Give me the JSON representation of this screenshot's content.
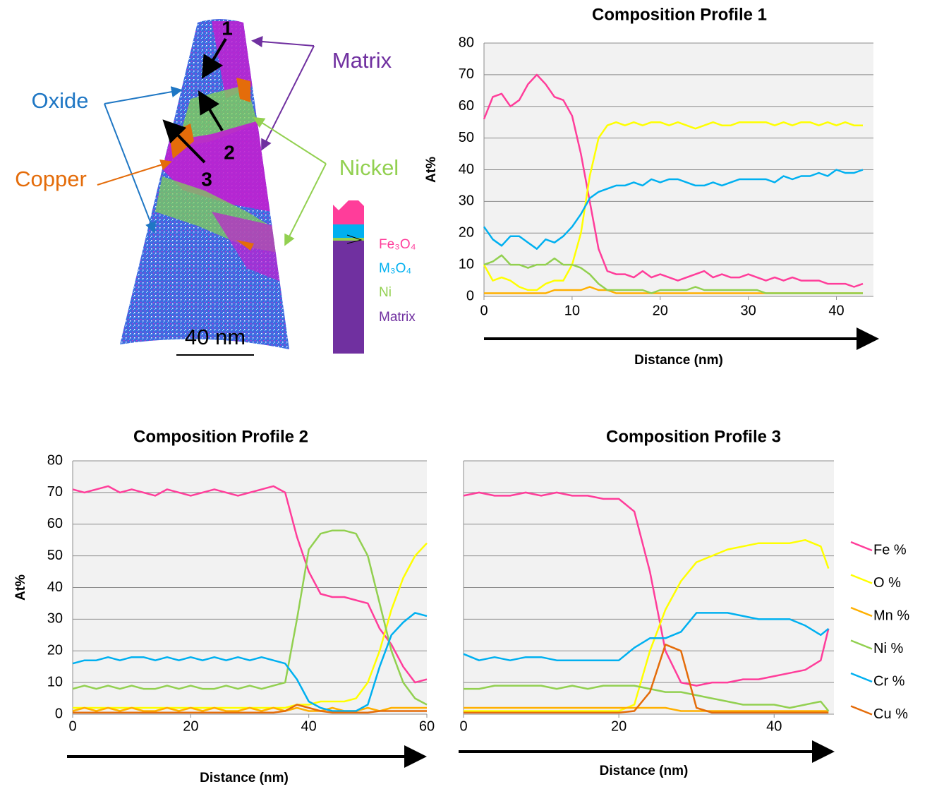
{
  "reconstruction": {
    "profile_markers": [
      "1",
      "2",
      "3"
    ],
    "regions": {
      "oxide": "Oxide",
      "matrix": "Matrix",
      "copper": "Copper",
      "nickel": "Nickel"
    },
    "scale_bar": "40 nm",
    "phase_legend": [
      "Fe₃O₄",
      "M₃O₄",
      "Ni",
      "Matrix"
    ]
  },
  "chart_data": [
    {
      "type": "line",
      "title": "Composition Profile 1",
      "xlabel": "Distance (nm)",
      "ylabel": "At%",
      "xlim": [
        0,
        44.2
      ],
      "xticks": [
        0,
        10,
        20,
        30,
        40
      ],
      "ylim": [
        0,
        80
      ],
      "yticks": [
        0,
        10,
        20,
        30,
        40,
        50,
        60,
        70,
        80
      ],
      "grid": true,
      "ytick_labels": true,
      "x": [
        0,
        1,
        2,
        3,
        4,
        5,
        6,
        7,
        8,
        9,
        10,
        11,
        12,
        13,
        14,
        15,
        16,
        17,
        18,
        19,
        20,
        21,
        22,
        23,
        24,
        25,
        26,
        27,
        28,
        29,
        30,
        31,
        32,
        33,
        34,
        35,
        36,
        37,
        38,
        39,
        40,
        41,
        42,
        43
      ],
      "series": [
        {
          "color": "#ff3d9a",
          "values": [
            56,
            63,
            64,
            60,
            62,
            67,
            70,
            67,
            63,
            62,
            57,
            45,
            30,
            15,
            8,
            7,
            7,
            6,
            8,
            6,
            7,
            6,
            5,
            6,
            7,
            8,
            6,
            7,
            6,
            6,
            7,
            6,
            5,
            6,
            5,
            6,
            5,
            5,
            5,
            4,
            4,
            4,
            3,
            4
          ]
        },
        {
          "color": "#ffff00",
          "values": [
            10,
            5,
            6,
            5,
            3,
            2,
            2,
            4,
            5,
            5,
            10,
            20,
            38,
            50,
            54,
            55,
            54,
            55,
            54,
            55,
            55,
            54,
            55,
            54,
            53,
            54,
            55,
            54,
            54,
            55,
            55,
            55,
            55,
            54,
            55,
            54,
            55,
            55,
            54,
            55,
            54,
            55,
            54,
            54
          ]
        },
        {
          "color": "#ffb000",
          "values": [
            1,
            1,
            1,
            1,
            1,
            1,
            1,
            1,
            2,
            2,
            2,
            2,
            3,
            2,
            2,
            1,
            1,
            1,
            1,
            1,
            1,
            1,
            1,
            1,
            1,
            1,
            1,
            1,
            1,
            1,
            1,
            1,
            1,
            1,
            1,
            1,
            1,
            1,
            1,
            1,
            1,
            1,
            1,
            1
          ]
        },
        {
          "color": "#92d050",
          "values": [
            10,
            11,
            13,
            10,
            10,
            9,
            10,
            10,
            12,
            10,
            10,
            9,
            7,
            4,
            2,
            2,
            2,
            2,
            2,
            1,
            2,
            2,
            2,
            2,
            3,
            2,
            2,
            2,
            2,
            2,
            2,
            2,
            1,
            1,
            1,
            1,
            1,
            1,
            1,
            1,
            1,
            1,
            1,
            1
          ]
        },
        {
          "color": "#00b0f0",
          "values": [
            22,
            18,
            16,
            19,
            19,
            17,
            15,
            18,
            17,
            19,
            22,
            26,
            31,
            33,
            34,
            35,
            35,
            36,
            35,
            37,
            36,
            37,
            37,
            36,
            35,
            35,
            36,
            35,
            36,
            37,
            37,
            37,
            37,
            36,
            38,
            37,
            38,
            38,
            39,
            38,
            40,
            39,
            39,
            40
          ]
        }
      ]
    },
    {
      "type": "line",
      "title": "Composition Profile 2",
      "xlabel": "Distance (nm)",
      "ylabel": "At%",
      "xlim": [
        0,
        60
      ],
      "xticks": [
        0,
        20,
        40,
        60
      ],
      "ylim": [
        0,
        80
      ],
      "yticks": [
        0,
        10,
        20,
        30,
        40,
        50,
        60,
        70,
        80
      ],
      "grid": true,
      "ytick_labels": true,
      "x": [
        0,
        2,
        4,
        6,
        8,
        10,
        12,
        14,
        16,
        18,
        20,
        22,
        24,
        26,
        28,
        30,
        32,
        34,
        36,
        38,
        40,
        42,
        44,
        46,
        48,
        50,
        52,
        54,
        56,
        58,
        60
      ],
      "series": [
        {
          "color": "#ff3d9a",
          "values": [
            71,
            70,
            71,
            72,
            70,
            71,
            70,
            69,
            71,
            70,
            69,
            70,
            71,
            70,
            69,
            70,
            71,
            72,
            70,
            56,
            45,
            38,
            37,
            37,
            36,
            35,
            27,
            22,
            15,
            10,
            11
          ]
        },
        {
          "color": "#ffff00",
          "values": [
            2,
            2,
            2,
            2,
            2,
            2,
            2,
            2,
            2,
            2,
            2,
            2,
            2,
            2,
            2,
            2,
            2,
            2,
            2,
            3,
            3,
            4,
            4,
            4,
            5,
            10,
            20,
            33,
            43,
            50,
            54
          ]
        },
        {
          "color": "#ffb000",
          "values": [
            1,
            2,
            1,
            2,
            1,
            2,
            1,
            1,
            2,
            1,
            2,
            1,
            2,
            1,
            1,
            2,
            1,
            2,
            1,
            2,
            1,
            1,
            2,
            1,
            1,
            2,
            1,
            2,
            2,
            2,
            2
          ]
        },
        {
          "color": "#92d050",
          "values": [
            8,
            9,
            8,
            9,
            8,
            9,
            8,
            8,
            9,
            8,
            9,
            8,
            8,
            9,
            8,
            9,
            8,
            9,
            10,
            30,
            52,
            57,
            58,
            58,
            57,
            50,
            35,
            20,
            10,
            5,
            3
          ]
        },
        {
          "color": "#00b0f0",
          "values": [
            16,
            17,
            17,
            18,
            17,
            18,
            18,
            17,
            18,
            17,
            18,
            17,
            18,
            17,
            18,
            17,
            18,
            17,
            16,
            11,
            4,
            2,
            1,
            1,
            1,
            3,
            15,
            25,
            29,
            32,
            31
          ]
        },
        {
          "color": "#e46c0a",
          "values": [
            0.5,
            0.5,
            0.5,
            0.5,
            0.5,
            0.5,
            0.5,
            0.5,
            0.5,
            0.5,
            0.5,
            0.5,
            0.5,
            0.5,
            0.5,
            0.5,
            0.5,
            0.5,
            1,
            3,
            2,
            1,
            0.5,
            0.5,
            0.5,
            0.5,
            1,
            1,
            1,
            1,
            1
          ]
        }
      ]
    },
    {
      "type": "line",
      "title": "Composition Profile 3",
      "xlabel": "Distance (nm)",
      "xlim": [
        0,
        47.7
      ],
      "xticks": [
        0,
        20,
        40
      ],
      "ylim": [
        0,
        80
      ],
      "yticks": [
        0,
        10,
        20,
        30,
        40,
        50,
        60,
        70,
        80
      ],
      "grid": true,
      "ytick_labels": false,
      "legend": "right",
      "x": [
        0,
        2,
        4,
        6,
        8,
        10,
        12,
        14,
        16,
        18,
        20,
        22,
        24,
        26,
        28,
        30,
        32,
        34,
        36,
        38,
        40,
        42,
        44,
        46,
        47
      ],
      "series": [
        {
          "name": "Fe %",
          "color": "#ff3d9a",
          "values": [
            69,
            70,
            69,
            69,
            70,
            69,
            70,
            69,
            69,
            68,
            68,
            64,
            45,
            20,
            10,
            9,
            10,
            10,
            11,
            11,
            12,
            13,
            14,
            17,
            27
          ]
        },
        {
          "name": "O %",
          "color": "#ffff00",
          "values": [
            1,
            1,
            1,
            1,
            1,
            1,
            1,
            1,
            1,
            1,
            1,
            3,
            20,
            33,
            42,
            48,
            50,
            52,
            53,
            54,
            54,
            54,
            55,
            53,
            46
          ]
        },
        {
          "name": "Mn %",
          "color": "#ffb000",
          "values": [
            2,
            2,
            2,
            2,
            2,
            2,
            2,
            2,
            2,
            2,
            2,
            2,
            2,
            2,
            1,
            1,
            1,
            1,
            1,
            1,
            1,
            1,
            1,
            1,
            1
          ]
        },
        {
          "name": "Ni %",
          "color": "#92d050",
          "values": [
            8,
            8,
            9,
            9,
            9,
            9,
            8,
            9,
            8,
            9,
            9,
            9,
            8,
            7,
            7,
            6,
            5,
            4,
            3,
            3,
            3,
            2,
            3,
            4,
            1
          ]
        },
        {
          "name": "Cr %",
          "color": "#00b0f0",
          "values": [
            19,
            17,
            18,
            17,
            18,
            18,
            17,
            17,
            17,
            17,
            17,
            21,
            24,
            24,
            26,
            32,
            32,
            32,
            31,
            30,
            30,
            30,
            28,
            25,
            27
          ]
        },
        {
          "name": "Cu %",
          "color": "#e46c0a",
          "values": [
            0.5,
            0.5,
            0.5,
            0.5,
            0.5,
            0.5,
            0.5,
            0.5,
            0.5,
            0.5,
            0.5,
            1,
            7,
            22,
            20,
            2,
            0.5,
            0.5,
            0.5,
            0.5,
            0.5,
            0.5,
            0.5,
            0.5,
            0.5
          ]
        }
      ]
    }
  ]
}
